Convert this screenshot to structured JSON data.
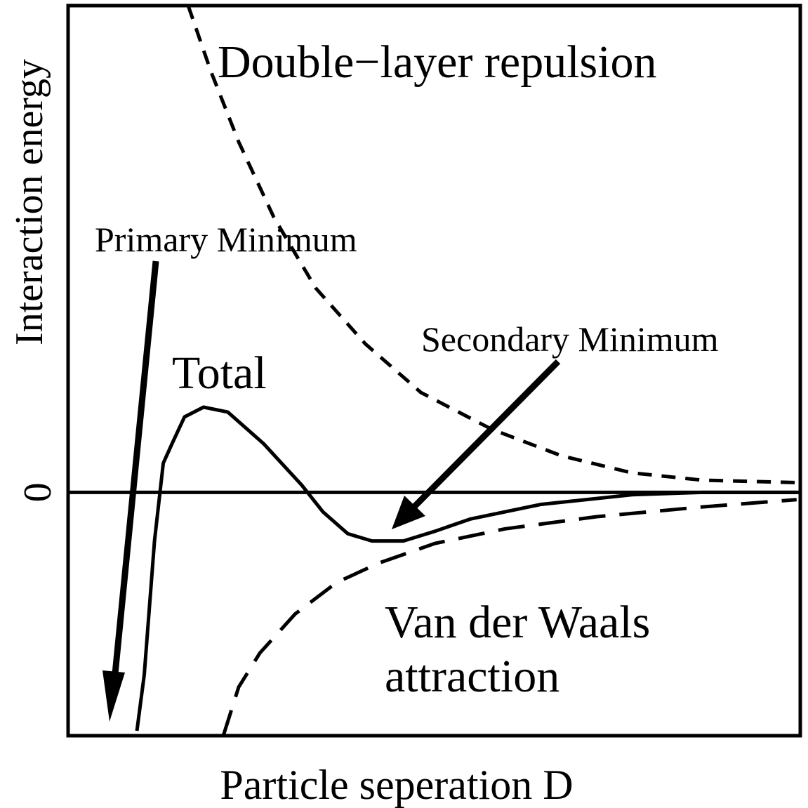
{
  "chart_data": {
    "type": "line",
    "xlabel": "Particle seperation D",
    "ylabel": "Interaction energy",
    "xlim": [
      0,
      10
    ],
    "ylim": [
      -1,
      2
    ],
    "yticks": [
      0
    ],
    "color": "#000000",
    "series": [
      {
        "style": "short-dash",
        "x": [
          1.64,
          1.95,
          2.33,
          2.81,
          3.38,
          4.06,
          4.82,
          5.78,
          6.74,
          7.7,
          8.66,
          9.95
        ],
        "values": [
          2.0,
          1.73,
          1.44,
          1.13,
          0.84,
          0.61,
          0.41,
          0.26,
          0.15,
          0.08,
          0.05,
          0.04
        ]
      },
      {
        "style": "long-dash",
        "x": [
          2.12,
          2.33,
          2.62,
          3.1,
          3.67,
          4.25,
          5.01,
          5.97,
          7.22,
          8.66,
          9.95
        ],
        "values": [
          -1.0,
          -0.8,
          -0.66,
          -0.5,
          -0.37,
          -0.29,
          -0.21,
          -0.15,
          -0.1,
          -0.06,
          -0.03
        ]
      },
      {
        "style": "solid",
        "x": [
          0.94,
          1.04,
          1.18,
          1.3,
          1.42,
          1.59,
          1.85,
          2.18,
          2.67,
          3.19,
          3.48,
          3.82,
          4.15,
          4.58,
          5.01,
          5.49,
          6.45,
          7.7,
          8.66,
          9.95
        ],
        "values": [
          -0.98,
          -0.75,
          -0.2,
          0.12,
          0.2,
          0.31,
          0.35,
          0.33,
          0.2,
          0.03,
          -0.08,
          -0.17,
          -0.2,
          -0.2,
          -0.16,
          -0.11,
          -0.05,
          -0.01,
          0.0,
          0.0
        ]
      }
    ],
    "annotations": [
      "Double−layer repulsion",
      "Total",
      "Van der Waals",
      "attraction",
      "Primary Minimum",
      "Secondary Minimum"
    ]
  }
}
